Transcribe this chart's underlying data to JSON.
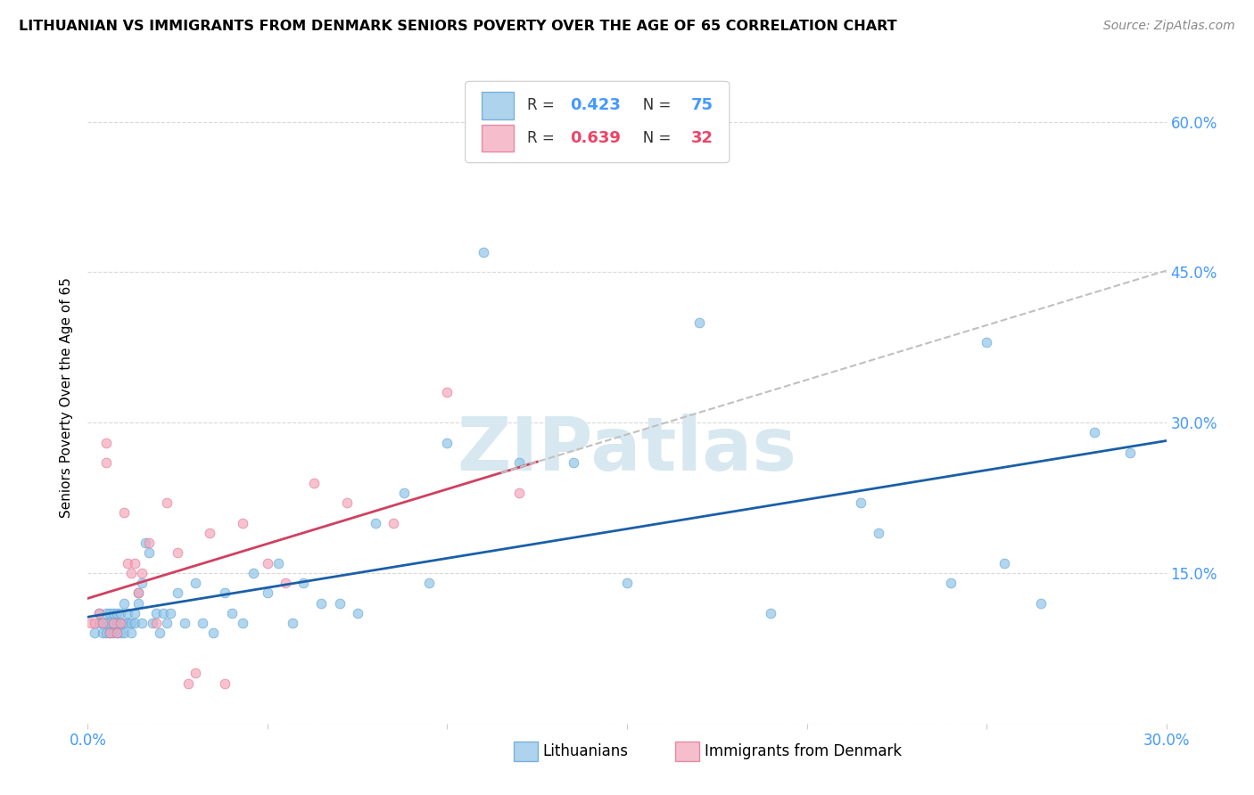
{
  "title": "LITHUANIAN VS IMMIGRANTS FROM DENMARK SENIORS POVERTY OVER THE AGE OF 65 CORRELATION CHART",
  "source": "Source: ZipAtlas.com",
  "ylabel": "Seniors Poverty Over the Age of 65",
  "xlim": [
    0.0,
    0.3
  ],
  "ylim": [
    0.0,
    0.65
  ],
  "r_lithuanian": 0.423,
  "n_lithuanian": 75,
  "r_denmark": 0.639,
  "n_denmark": 32,
  "blue_color": "#92c5e8",
  "pink_color": "#f4a8bc",
  "blue_edge_color": "#5a9fd4",
  "pink_edge_color": "#e07090",
  "blue_line_color": "#1a5fa8",
  "pink_line_color": "#d04060",
  "dashed_line_color": "#c0c0c0",
  "legend_r_color_blue": "#4499ff",
  "legend_r_color_pink": "#ee4466",
  "watermark": "ZIPatlas",
  "watermark_color": "#d8e8f0",
  "lithuanian_x": [
    0.002,
    0.003,
    0.003,
    0.004,
    0.004,
    0.005,
    0.005,
    0.005,
    0.006,
    0.006,
    0.006,
    0.007,
    0.007,
    0.007,
    0.008,
    0.008,
    0.008,
    0.009,
    0.009,
    0.009,
    0.01,
    0.01,
    0.01,
    0.011,
    0.011,
    0.012,
    0.012,
    0.013,
    0.013,
    0.014,
    0.014,
    0.015,
    0.015,
    0.016,
    0.017,
    0.018,
    0.019,
    0.02,
    0.021,
    0.022,
    0.023,
    0.025,
    0.027,
    0.03,
    0.032,
    0.035,
    0.038,
    0.04,
    0.043,
    0.046,
    0.05,
    0.053,
    0.057,
    0.06,
    0.065,
    0.07,
    0.075,
    0.08,
    0.088,
    0.095,
    0.1,
    0.11,
    0.12,
    0.135,
    0.15,
    0.17,
    0.19,
    0.215,
    0.22,
    0.24,
    0.25,
    0.255,
    0.265,
    0.28,
    0.29
  ],
  "lithuanian_y": [
    0.09,
    0.1,
    0.11,
    0.1,
    0.09,
    0.1,
    0.09,
    0.11,
    0.1,
    0.09,
    0.11,
    0.1,
    0.09,
    0.11,
    0.1,
    0.09,
    0.11,
    0.1,
    0.09,
    0.11,
    0.1,
    0.09,
    0.12,
    0.1,
    0.11,
    0.09,
    0.1,
    0.11,
    0.1,
    0.13,
    0.12,
    0.1,
    0.14,
    0.18,
    0.17,
    0.1,
    0.11,
    0.09,
    0.11,
    0.1,
    0.11,
    0.13,
    0.1,
    0.14,
    0.1,
    0.09,
    0.13,
    0.11,
    0.1,
    0.15,
    0.13,
    0.16,
    0.1,
    0.14,
    0.12,
    0.12,
    0.11,
    0.2,
    0.23,
    0.14,
    0.28,
    0.47,
    0.26,
    0.26,
    0.14,
    0.4,
    0.11,
    0.22,
    0.19,
    0.14,
    0.38,
    0.16,
    0.12,
    0.29,
    0.27
  ],
  "denmark_x": [
    0.001,
    0.002,
    0.003,
    0.004,
    0.005,
    0.005,
    0.006,
    0.007,
    0.008,
    0.009,
    0.01,
    0.011,
    0.012,
    0.013,
    0.014,
    0.015,
    0.017,
    0.019,
    0.022,
    0.025,
    0.028,
    0.03,
    0.034,
    0.038,
    0.043,
    0.05,
    0.055,
    0.063,
    0.072,
    0.085,
    0.1,
    0.12
  ],
  "denmark_y": [
    0.1,
    0.1,
    0.11,
    0.1,
    0.28,
    0.26,
    0.09,
    0.1,
    0.09,
    0.1,
    0.21,
    0.16,
    0.15,
    0.16,
    0.13,
    0.15,
    0.18,
    0.1,
    0.22,
    0.17,
    0.04,
    0.05,
    0.19,
    0.04,
    0.2,
    0.16,
    0.14,
    0.24,
    0.22,
    0.2,
    0.33,
    0.23
  ]
}
